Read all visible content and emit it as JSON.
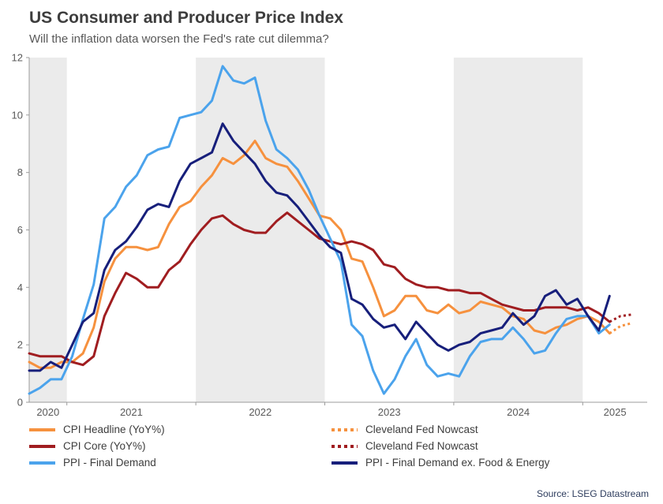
{
  "chart_data": {
    "type": "line",
    "title": "US Consumer and Producer Price Index",
    "subtitle": "Will the inflation data worsen the Fed's rate cut dilemma?",
    "y_axis": {
      "min": 0,
      "max": 12,
      "tick_step": 2
    },
    "x_tick_labels": [
      "2020",
      "2021",
      "2022",
      "2023",
      "2024",
      "2025"
    ],
    "shaded_years": [
      2020,
      2022,
      2024
    ],
    "x_right_pad_months": 1.5,
    "colors": {
      "band": "#ebebeb",
      "axis": "#9b9b9b",
      "tick_text": "#595959"
    },
    "series": [
      {
        "name": "CPI Headline (YoY%)",
        "color": "#F6913E",
        "style": "solid",
        "start": "2020-09",
        "values": [
          1.4,
          1.2,
          1.2,
          1.4,
          1.4,
          1.7,
          2.6,
          4.2,
          5.0,
          5.4,
          5.4,
          5.3,
          5.4,
          6.2,
          6.8,
          7.0,
          7.5,
          7.9,
          8.5,
          8.3,
          8.6,
          9.1,
          8.5,
          8.3,
          8.2,
          7.7,
          7.1,
          6.5,
          6.4,
          6.0,
          5.0,
          4.9,
          4.0,
          3.0,
          3.2,
          3.7,
          3.7,
          3.2,
          3.1,
          3.4,
          3.1,
          3.2,
          3.5,
          3.4,
          3.3,
          3.0,
          2.9,
          2.5,
          2.4,
          2.6,
          2.7,
          2.9,
          3.0,
          2.8,
          2.4
        ]
      },
      {
        "name": "CPI Core (YoY%)",
        "color": "#A01D20",
        "style": "solid",
        "start": "2020-09",
        "values": [
          1.7,
          1.6,
          1.6,
          1.6,
          1.4,
          1.3,
          1.6,
          3.0,
          3.8,
          4.5,
          4.3,
          4.0,
          4.0,
          4.6,
          4.9,
          5.5,
          6.0,
          6.4,
          6.5,
          6.2,
          6.0,
          5.9,
          5.9,
          6.3,
          6.6,
          6.3,
          6.0,
          5.7,
          5.6,
          5.5,
          5.6,
          5.5,
          5.3,
          4.8,
          4.7,
          4.3,
          4.1,
          4.0,
          4.0,
          3.9,
          3.9,
          3.8,
          3.8,
          3.6,
          3.4,
          3.3,
          3.2,
          3.2,
          3.3,
          3.3,
          3.3,
          3.2,
          3.3,
          3.1,
          2.8
        ]
      },
      {
        "name": "PPI - Final Demand",
        "color": "#4BA3EC",
        "style": "solid",
        "start": "2020-09",
        "values": [
          0.3,
          0.5,
          0.8,
          0.8,
          1.6,
          2.9,
          4.1,
          6.4,
          6.8,
          7.5,
          7.9,
          8.6,
          8.8,
          8.9,
          9.9,
          10.0,
          10.1,
          10.5,
          11.7,
          11.2,
          11.1,
          11.3,
          9.8,
          8.8,
          8.5,
          8.1,
          7.4,
          6.5,
          5.7,
          4.9,
          2.7,
          2.3,
          1.1,
          0.3,
          0.8,
          1.6,
          2.2,
          1.3,
          0.9,
          1.0,
          0.9,
          1.6,
          2.1,
          2.2,
          2.2,
          2.6,
          2.2,
          1.7,
          1.8,
          2.4,
          2.9,
          3.0,
          3.0,
          2.4,
          2.7
        ]
      },
      {
        "name": "PPI - Final Demand ex. Food & Energy",
        "color": "#171F7B",
        "style": "solid",
        "start": "2020-09",
        "values": [
          1.1,
          1.1,
          1.4,
          1.2,
          2.0,
          2.8,
          3.1,
          4.6,
          5.3,
          5.6,
          6.1,
          6.7,
          6.9,
          6.8,
          7.7,
          8.3,
          8.5,
          8.7,
          9.7,
          9.1,
          8.7,
          8.3,
          7.7,
          7.3,
          7.2,
          6.8,
          6.3,
          5.8,
          5.4,
          5.2,
          3.6,
          3.4,
          2.9,
          2.6,
          2.7,
          2.2,
          2.8,
          2.4,
          2.0,
          1.8,
          2.0,
          2.1,
          2.4,
          2.5,
          2.6,
          3.1,
          2.7,
          3.0,
          3.7,
          3.9,
          3.4,
          3.6,
          3.0,
          2.5,
          3.7
        ]
      },
      {
        "name": "Cleveland Fed Nowcast",
        "color": "#F6913E",
        "style": "dotted",
        "start": "2025-03",
        "values": [
          2.4,
          2.65,
          2.75
        ]
      },
      {
        "name": "Cleveland Fed Nowcast",
        "color": "#A01D20",
        "style": "dotted",
        "start": "2025-03",
        "values": [
          2.8,
          3.0,
          3.05
        ]
      }
    ],
    "legend": {
      "position": "bottom",
      "left_column_series": [
        0,
        1,
        2
      ],
      "right_column_series": [
        4,
        5,
        3
      ]
    }
  },
  "source": "Source: LSEG Datastream"
}
